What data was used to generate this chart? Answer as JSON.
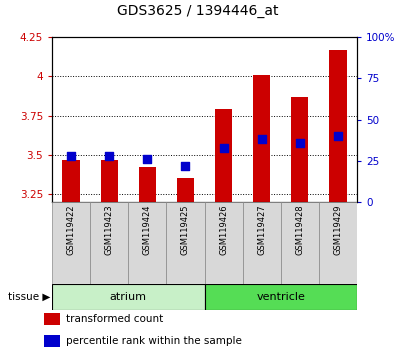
{
  "title": "GDS3625 / 1394446_at",
  "samples": [
    "GSM119422",
    "GSM119423",
    "GSM119424",
    "GSM119425",
    "GSM119426",
    "GSM119427",
    "GSM119428",
    "GSM119429"
  ],
  "transformed_counts": [
    3.47,
    3.47,
    3.42,
    3.35,
    3.79,
    4.01,
    3.87,
    4.17
  ],
  "percentile_ranks": [
    28,
    28,
    26,
    22,
    33,
    38,
    36,
    40
  ],
  "base_value": 3.2,
  "tissue_groups": [
    {
      "label": "atrium",
      "start": 0,
      "end": 4,
      "color": "#c8f0c8"
    },
    {
      "label": "ventricle",
      "start": 4,
      "end": 8,
      "color": "#55dd55"
    }
  ],
  "ylim_left": [
    3.2,
    4.25
  ],
  "ylim_right": [
    0,
    100
  ],
  "yticks_left": [
    3.25,
    3.5,
    3.75,
    4.0,
    4.25
  ],
  "ytick_labels_left": [
    "3.25",
    "3.5",
    "3.75",
    "4",
    "4.25"
  ],
  "yticks_right": [
    0,
    25,
    50,
    75,
    100
  ],
  "ytick_labels_right": [
    "0",
    "25",
    "50",
    "75",
    "100%"
  ],
  "bar_color": "#cc0000",
  "dot_color": "#0000cc",
  "bar_width": 0.45,
  "dot_size": 28,
  "grid_color": "black",
  "bg_color": "#d8d8d8",
  "left_tick_color": "#cc0000",
  "right_tick_color": "#0000cc",
  "tissue_label": "tissue",
  "legend_items": [
    {
      "color": "#cc0000",
      "label": "transformed count"
    },
    {
      "color": "#0000cc",
      "label": "percentile rank within the sample"
    }
  ],
  "figsize": [
    3.95,
    3.54
  ],
  "dpi": 100
}
